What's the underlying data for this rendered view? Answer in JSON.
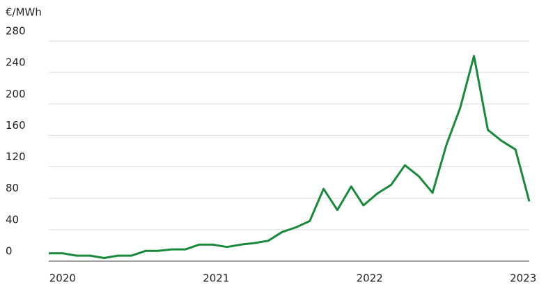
{
  "chart_data": {
    "type": "line",
    "ylabel": "€/MWh",
    "x": [
      2019.91,
      2020.0,
      2020.09,
      2020.18,
      2020.27,
      2020.36,
      2020.45,
      2020.54,
      2020.62,
      2020.71,
      2020.8,
      2020.89,
      2020.98,
      2021.07,
      2021.16,
      2021.25,
      2021.34,
      2021.43,
      2021.52,
      2021.61,
      2021.7,
      2021.79,
      2021.88,
      2021.96,
      2022.05,
      2022.14,
      2022.23,
      2022.32,
      2022.41,
      2022.5,
      2022.59,
      2022.68,
      2022.77,
      2022.86,
      2022.95,
      2023.04
    ],
    "values": [
      10,
      10,
      7,
      7,
      4,
      7,
      7,
      13,
      13,
      15,
      15,
      21,
      21,
      18,
      21,
      23,
      26,
      37,
      43,
      51,
      92,
      65,
      95,
      71,
      86,
      97,
      122,
      108,
      87,
      148,
      195,
      261,
      167,
      153,
      142,
      76
    ],
    "color": "#17893a",
    "xlim": [
      2019.91,
      2023.04
    ],
    "xticks": [
      2020,
      2021,
      2022,
      2023
    ],
    "ylim": [
      0,
      280
    ],
    "yticks": [
      0,
      40,
      80,
      120,
      160,
      200,
      240,
      280
    ],
    "grid": true
  }
}
